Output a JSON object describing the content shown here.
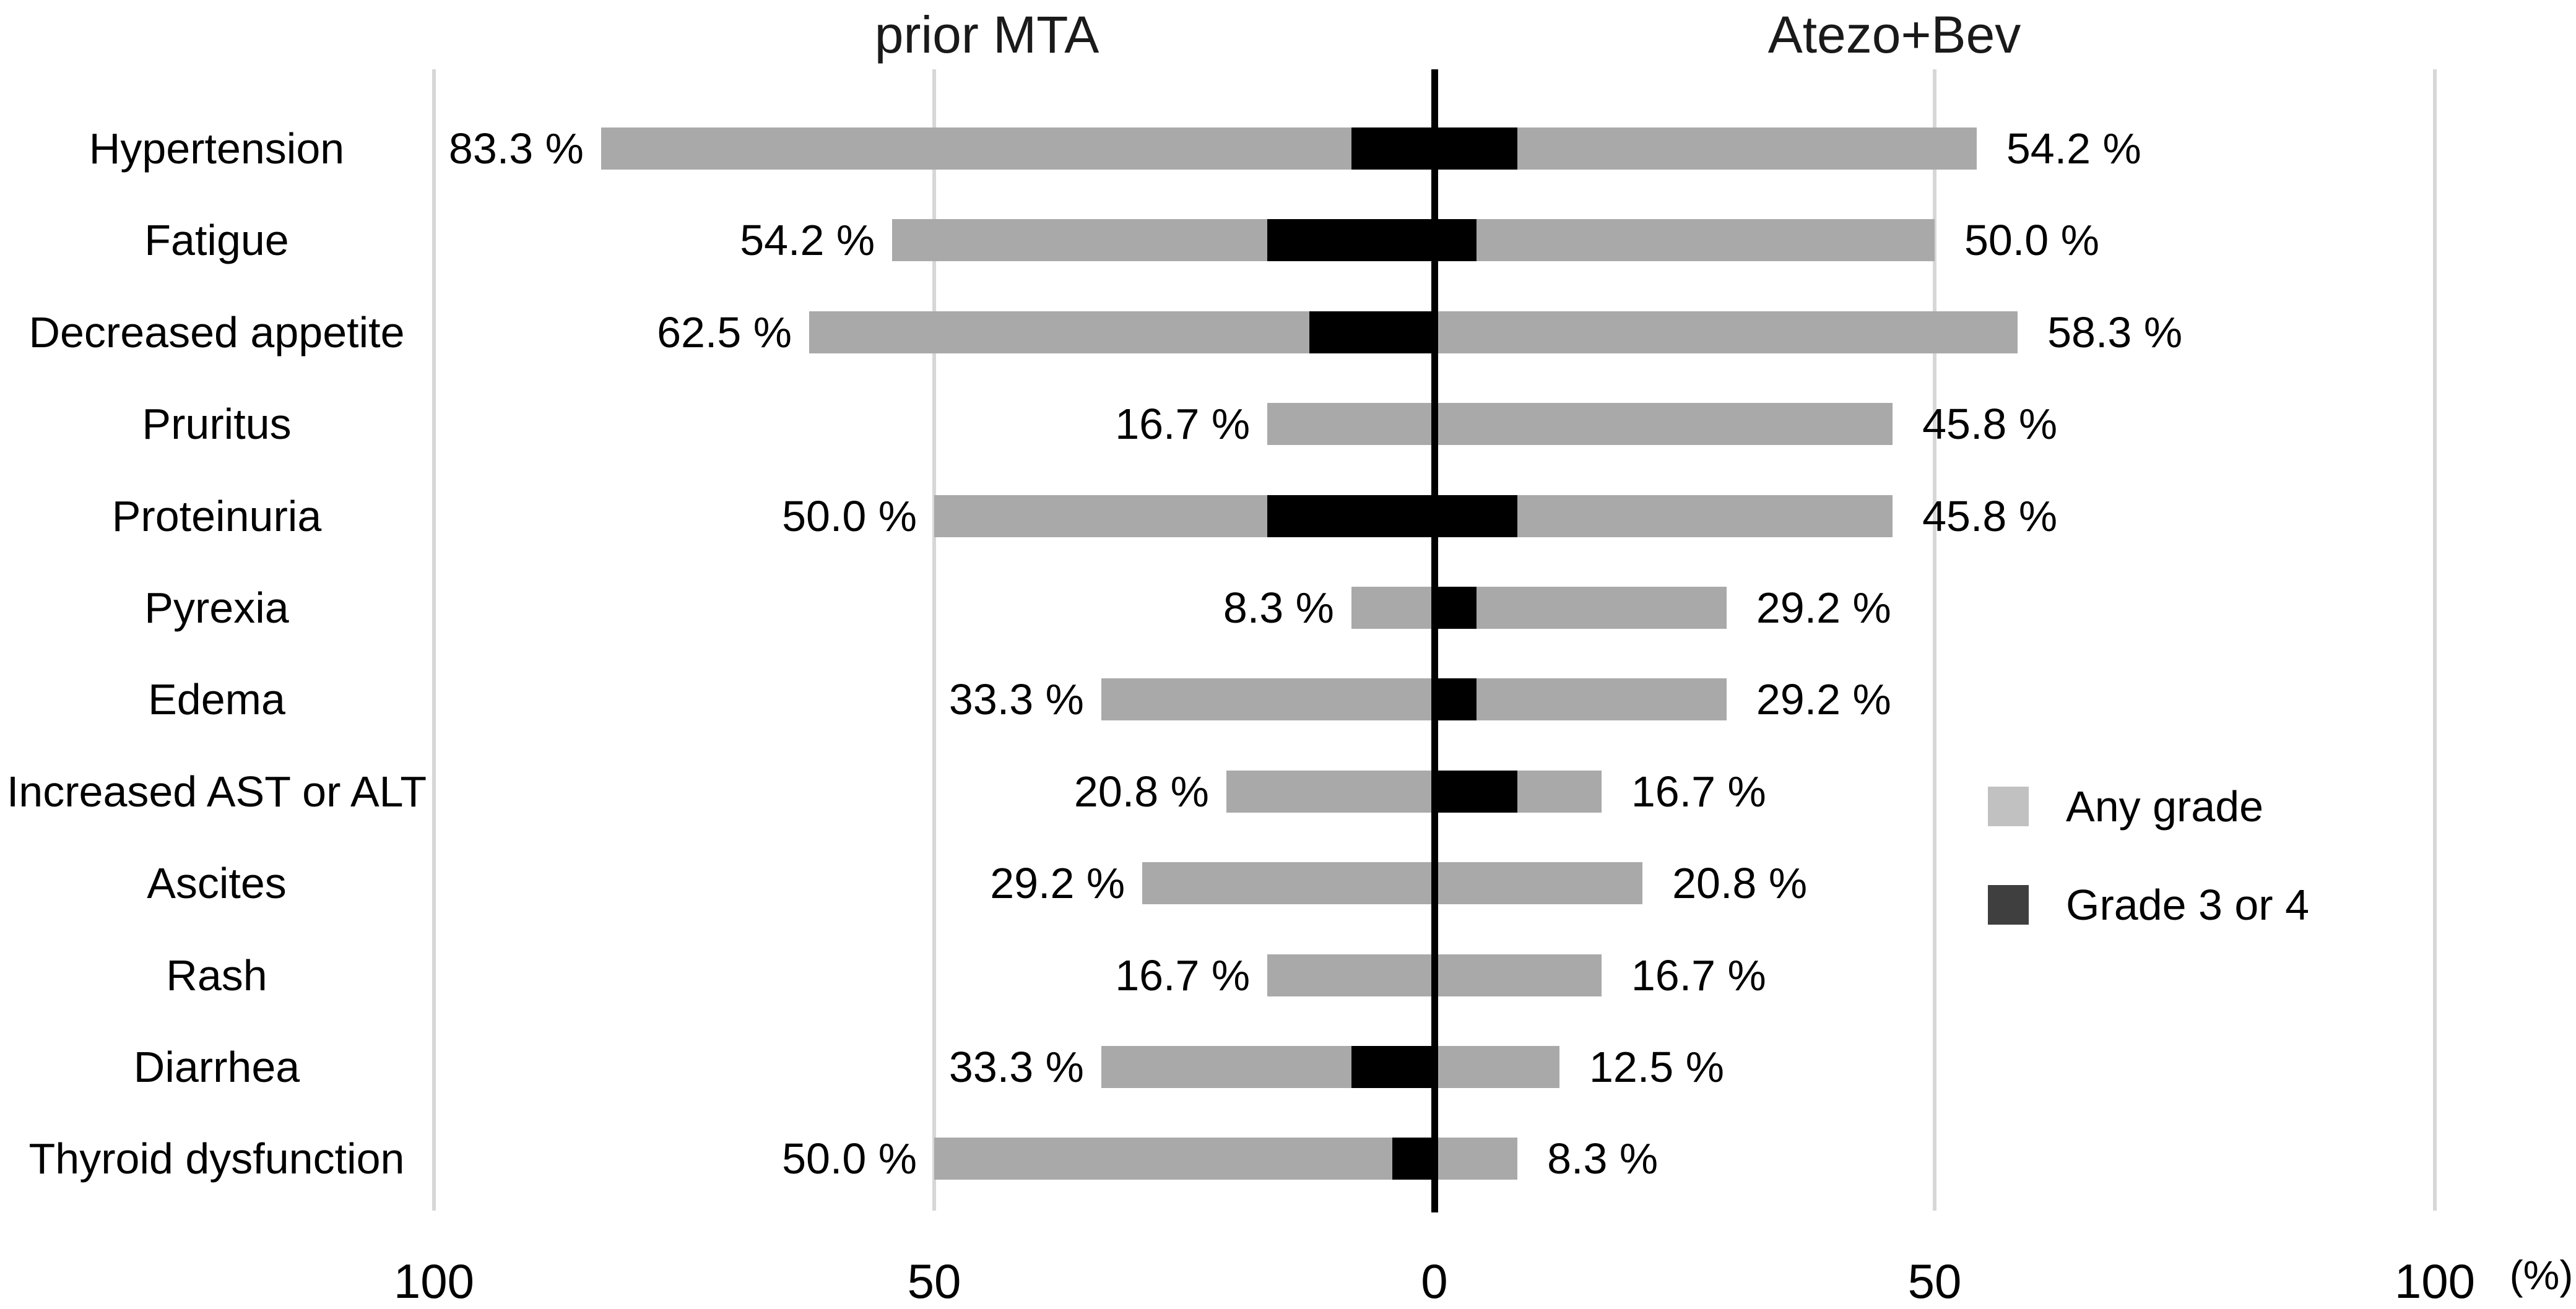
{
  "chart_data": {
    "type": "bar",
    "variant": "diverging_butterfly_horizontal",
    "title_left": "prior MTA",
    "title_right": "Atezo+Bev",
    "unit_label": "(%)",
    "x_axis": {
      "range": [
        -100,
        100
      ],
      "gridlines": true,
      "ticks": [
        {
          "value": -100,
          "label": "100"
        },
        {
          "value": -50,
          "label": "50"
        },
        {
          "value": 0,
          "label": "0"
        },
        {
          "value": 50,
          "label": "50"
        },
        {
          "value": 100,
          "label": "100"
        }
      ]
    },
    "legend": [
      {
        "key": "any_grade",
        "label": "Any grade",
        "swatch_color": "#c1c1c1"
      },
      {
        "key": "grade_3_4",
        "label": "Grade 3 or 4",
        "swatch_color": "#3f3f3f"
      }
    ],
    "colors": {
      "any_grade_bar": "#a9a9a9",
      "grade_3_4_bar": "#000000",
      "axis_line": "#000000",
      "gridline": "#d7d7d7"
    },
    "rows": [
      {
        "category": "Hypertension",
        "left_any_grade": 83.3,
        "left_grade_3_4": 8.3,
        "left_label": "83.3 %",
        "right_any_grade": 54.2,
        "right_grade_3_4": 8.3,
        "right_label": "54.2 %"
      },
      {
        "category": "Fatigue",
        "left_any_grade": 54.2,
        "left_grade_3_4": 16.7,
        "left_label": "54.2 %",
        "right_any_grade": 50.0,
        "right_grade_3_4": 4.2,
        "right_label": "50.0 %"
      },
      {
        "category": "Decreased appetite",
        "left_any_grade": 62.5,
        "left_grade_3_4": 12.5,
        "left_label": "62.5 %",
        "right_any_grade": 58.3,
        "right_grade_3_4": 0,
        "right_label": "58.3 %"
      },
      {
        "category": "Pruritus",
        "left_any_grade": 16.7,
        "left_grade_3_4": 0,
        "left_label": "16.7 %",
        "right_any_grade": 45.8,
        "right_grade_3_4": 0,
        "right_label": "45.8 %"
      },
      {
        "category": "Proteinuria",
        "left_any_grade": 50.0,
        "left_grade_3_4": 16.7,
        "left_label": "50.0 %",
        "right_any_grade": 45.8,
        "right_grade_3_4": 8.3,
        "right_label": "45.8 %"
      },
      {
        "category": "Pyrexia",
        "left_any_grade": 8.3,
        "left_grade_3_4": 0,
        "left_label": "8.3 %",
        "right_any_grade": 29.2,
        "right_grade_3_4": 4.2,
        "right_label": "29.2 %"
      },
      {
        "category": "Edema",
        "left_any_grade": 33.3,
        "left_grade_3_4": 0,
        "left_label": "33.3 %",
        "right_any_grade": 29.2,
        "right_grade_3_4": 4.2,
        "right_label": "29.2 %"
      },
      {
        "category": "Increased AST or ALT",
        "left_any_grade": 20.8,
        "left_grade_3_4": 0,
        "left_label": "20.8 %",
        "right_any_grade": 16.7,
        "right_grade_3_4": 8.3,
        "right_label": "16.7 %"
      },
      {
        "category": "Ascites",
        "left_any_grade": 29.2,
        "left_grade_3_4": 0,
        "left_label": "29.2 %",
        "right_any_grade": 20.8,
        "right_grade_3_4": 0,
        "right_label": "20.8 %"
      },
      {
        "category": "Rash",
        "left_any_grade": 16.7,
        "left_grade_3_4": 0,
        "left_label": "16.7 %",
        "right_any_grade": 16.7,
        "right_grade_3_4": 0,
        "right_label": "16.7 %"
      },
      {
        "category": "Diarrhea",
        "left_any_grade": 33.3,
        "left_grade_3_4": 8.3,
        "left_label": "33.3 %",
        "right_any_grade": 12.5,
        "right_grade_3_4": 0,
        "right_label": "12.5 %"
      },
      {
        "category": "Thyroid dysfunction",
        "left_any_grade": 50.0,
        "left_grade_3_4": 4.2,
        "left_label": "50.0 %",
        "right_any_grade": 8.3,
        "right_grade_3_4": 0,
        "right_label": "8.3 %"
      }
    ]
  }
}
